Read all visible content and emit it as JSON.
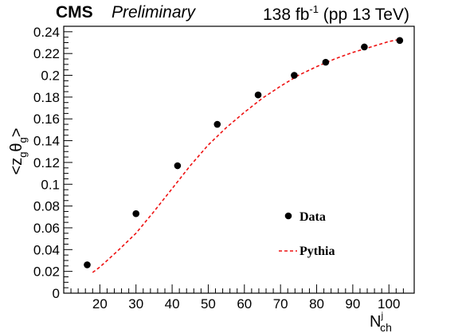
{
  "header": {
    "experiment": "CMS",
    "status": "Preliminary",
    "lumi_value": "138 fb",
    "lumi_exp": "-1",
    "lumi_energy": "(pp 13 TeV)"
  },
  "chart_data": {
    "type": "scatter",
    "xlabel_main": "N",
    "xlabel_sup": "j",
    "xlabel_sub": "ch",
    "ylabel": "<z_g θ_g>",
    "xlim": [
      10,
      107
    ],
    "ylim": [
      0,
      0.245
    ],
    "x_ticks": [
      20,
      30,
      40,
      50,
      60,
      70,
      80,
      90,
      100
    ],
    "y_ticks": [
      0,
      0.02,
      0.04,
      0.06,
      0.08,
      0.1,
      0.12,
      0.14,
      0.16,
      0.18,
      0.2,
      0.22,
      0.24
    ],
    "series": [
      {
        "name": "Data",
        "style": "markers",
        "color": "#000000",
        "x": [
          16.5,
          30,
          41.5,
          52.5,
          63.8,
          73.8,
          82.5,
          93.2,
          103
        ],
        "y": [
          0.026,
          0.073,
          0.117,
          0.155,
          0.182,
          0.2,
          0.212,
          0.226,
          0.232
        ]
      },
      {
        "name": "Pythia",
        "style": "dashed-line",
        "color": "#ee1111",
        "x": [
          18,
          20,
          25,
          30,
          35,
          40,
          45,
          50,
          55,
          60,
          65,
          70,
          75,
          80,
          85,
          90,
          95,
          100,
          103
        ],
        "y": [
          0.019,
          0.024,
          0.039,
          0.055,
          0.075,
          0.096,
          0.117,
          0.136,
          0.152,
          0.166,
          0.179,
          0.19,
          0.2,
          0.208,
          0.215,
          0.221,
          0.226,
          0.231,
          0.233
        ]
      }
    ],
    "legend": {
      "position": "bottom-right",
      "entries": [
        "Data",
        "Pythia"
      ]
    }
  }
}
